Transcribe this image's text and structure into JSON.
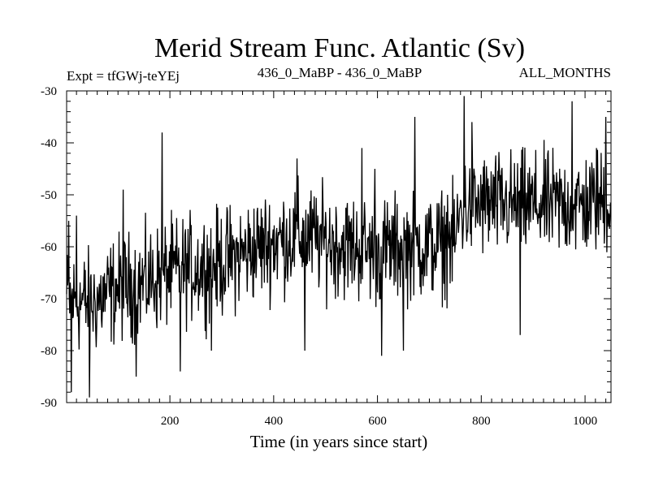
{
  "chart_data": {
    "type": "line",
    "title": "Merid Stream Func. Atlantic (Sv)",
    "subtitle_left": "Expt = tfGWj-teYEj",
    "subtitle_center": "436_0_MaBP - 436_0_MaBP",
    "subtitle_right": "ALL_MONTHS",
    "xlabel": "Time (in years since start)",
    "ylabel": "",
    "xlim": [
      1,
      1050
    ],
    "ylim": [
      -90,
      -30
    ],
    "x_ticks": [
      200,
      400,
      600,
      800,
      1000
    ],
    "y_ticks": [
      -30,
      -40,
      -50,
      -60,
      -70,
      -80,
      -90
    ],
    "series": [
      {
        "name": "Merid Stream Func. Atlantic",
        "color": "#000000",
        "trend": {
          "x": [
            0,
            50,
            100,
            150,
            200,
            250,
            300,
            350,
            400,
            450,
            500,
            550,
            600,
            650,
            700,
            750,
            760,
            800,
            850,
            900,
            950,
            1000,
            1050
          ],
          "y": [
            -70,
            -71,
            -68,
            -67,
            -65,
            -64,
            -63,
            -61,
            -59,
            -58,
            -59,
            -60,
            -61,
            -60,
            -60,
            -59,
            -53,
            -52,
            -52,
            -52,
            -52,
            -52,
            -51
          ]
        },
        "amplitude": 5,
        "spikes": [
          {
            "x": 5,
            "y": -55
          },
          {
            "x": 10,
            "y": -88
          },
          {
            "x": 20,
            "y": -54
          },
          {
            "x": 45,
            "y": -89
          },
          {
            "x": 110,
            "y": -49
          },
          {
            "x": 135,
            "y": -85
          },
          {
            "x": 185,
            "y": -38
          },
          {
            "x": 220,
            "y": -84
          },
          {
            "x": 280,
            "y": -80
          },
          {
            "x": 445,
            "y": -43
          },
          {
            "x": 460,
            "y": -80
          },
          {
            "x": 570,
            "y": -41
          },
          {
            "x": 595,
            "y": -45
          },
          {
            "x": 608,
            "y": -81
          },
          {
            "x": 650,
            "y": -80
          },
          {
            "x": 672,
            "y": -35
          },
          {
            "x": 735,
            "y": -50
          },
          {
            "x": 767,
            "y": -31
          },
          {
            "x": 782,
            "y": -36
          },
          {
            "x": 875,
            "y": -77
          },
          {
            "x": 975,
            "y": -32
          },
          {
            "x": 1022,
            "y": -41
          },
          {
            "x": 1040,
            "y": -35
          }
        ]
      }
    ]
  }
}
